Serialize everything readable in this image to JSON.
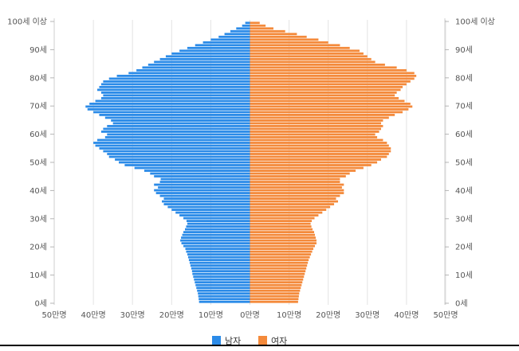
{
  "chart_data": {
    "type": "bar",
    "orientation": "horizontal-pyramid",
    "title": "",
    "xlabel": "",
    "ylabel": "",
    "unit": "만명",
    "xlim": [
      -50,
      50
    ],
    "x_ticks": [
      {
        "value": -50,
        "label": "50만명"
      },
      {
        "value": -40,
        "label": "40만명"
      },
      {
        "value": -30,
        "label": "30만명"
      },
      {
        "value": -20,
        "label": "20만명"
      },
      {
        "value": -10,
        "label": "10만명"
      },
      {
        "value": 0,
        "label": "0만명"
      },
      {
        "value": 10,
        "label": "10만명"
      },
      {
        "value": 20,
        "label": "20만명"
      },
      {
        "value": 30,
        "label": "30만명"
      },
      {
        "value": 40,
        "label": "40만명"
      },
      {
        "value": 50,
        "label": "50만명"
      }
    ],
    "y_ticks": [
      {
        "age": 0,
        "label": "0세"
      },
      {
        "age": 10,
        "label": "10세"
      },
      {
        "age": 20,
        "label": "20세"
      },
      {
        "age": 30,
        "label": "30세"
      },
      {
        "age": 40,
        "label": "40세"
      },
      {
        "age": 50,
        "label": "50세"
      },
      {
        "age": 60,
        "label": "60세"
      },
      {
        "age": 70,
        "label": "70세"
      },
      {
        "age": 80,
        "label": "80세"
      },
      {
        "age": 90,
        "label": "90세"
      },
      {
        "age": 100,
        "label": "100세 이상"
      }
    ],
    "legend": {
      "position": "bottom-center"
    },
    "grid": true,
    "age_range": [
      0,
      100
    ],
    "series": [
      {
        "name": "남자",
        "color": "#2b8be8",
        "values": [
          13.0,
          13.1,
          13.2,
          13.3,
          13.5,
          13.7,
          13.9,
          14.1,
          14.3,
          14.5,
          14.7,
          14.8,
          15.0,
          15.2,
          15.4,
          15.6,
          15.8,
          16.0,
          16.3,
          16.5,
          17.0,
          17.5,
          17.8,
          17.6,
          17.3,
          17.0,
          16.6,
          16.3,
          16.0,
          16.2,
          17.0,
          18.0,
          19.0,
          20.0,
          21.0,
          22.0,
          22.5,
          22.0,
          23.0,
          24.0,
          24.5,
          23.5,
          24.5,
          23.0,
          22.8,
          24.5,
          25.5,
          27.0,
          29.5,
          32.0,
          33.5,
          34.5,
          36.0,
          36.5,
          37.5,
          38.5,
          39.5,
          40.0,
          39.0,
          37.0,
          36.5,
          38.0,
          37.5,
          36.5,
          35.0,
          35.5,
          37.0,
          38.5,
          40.0,
          41.5,
          42.0,
          41.0,
          39.5,
          38.0,
          37.5,
          38.0,
          39.0,
          38.5,
          38.0,
          37.5,
          36.0,
          34.0,
          31.0,
          29.0,
          27.5,
          26.0,
          24.5,
          23.0,
          21.5,
          20.0,
          18.0,
          16.0,
          14.0,
          12.0,
          10.0,
          8.0,
          6.5,
          5.0,
          3.5,
          2.0,
          1.2
        ]
      },
      {
        "name": "여자",
        "color": "#f48a3b",
        "values": [
          12.3,
          12.4,
          12.5,
          12.6,
          12.8,
          13.0,
          13.2,
          13.4,
          13.6,
          13.8,
          14.0,
          14.2,
          14.4,
          14.6,
          14.8,
          15.0,
          15.3,
          15.6,
          15.9,
          16.2,
          16.6,
          17.0,
          17.0,
          16.8,
          16.6,
          16.4,
          16.0,
          15.7,
          15.5,
          15.8,
          16.5,
          17.5,
          18.5,
          19.5,
          20.5,
          21.5,
          22.5,
          22.0,
          23.0,
          24.0,
          24.0,
          23.5,
          24.0,
          23.0,
          23.0,
          24.5,
          25.5,
          27.0,
          29.0,
          31.0,
          32.5,
          33.5,
          35.0,
          35.5,
          36.0,
          36.0,
          35.5,
          35.0,
          34.0,
          32.5,
          32.0,
          33.0,
          33.5,
          34.0,
          33.5,
          34.0,
          35.5,
          37.0,
          39.0,
          40.5,
          41.5,
          41.0,
          39.5,
          38.0,
          37.0,
          37.5,
          38.5,
          39.0,
          40.0,
          41.0,
          42.0,
          42.5,
          42.0,
          40.0,
          37.5,
          34.5,
          32.0,
          31.0,
          30.0,
          29.0,
          28.0,
          25.5,
          23.0,
          20.0,
          17.5,
          14.5,
          12.0,
          9.0,
          6.0,
          4.0,
          2.5
        ]
      }
    ]
  }
}
